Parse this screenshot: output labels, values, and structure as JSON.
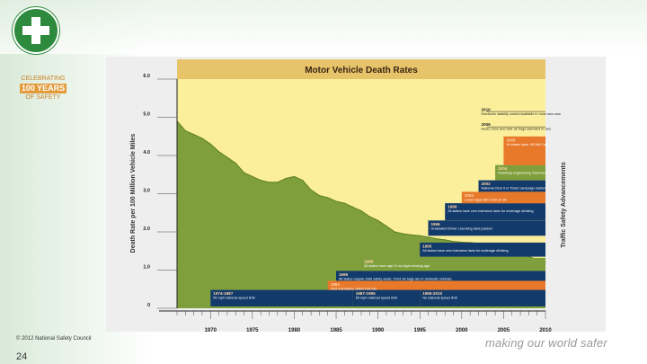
{
  "branding": {
    "badge_line1": "CELEBRATING",
    "badge_line2": "100 YEARS",
    "badge_line3": "OF SAFETY",
    "copyright": "© 2012 National Safety Council",
    "page_number": "24",
    "tagline": "making our world safer"
  },
  "colors": {
    "yellow": "#fbef9c",
    "green": "#7f9f3c",
    "navy": "#123a6b",
    "orange": "#e8782a",
    "header": "#5a3a1a",
    "title_bg": "#e7c46a"
  },
  "chart_data": {
    "type": "area",
    "title": "Motor Vehicle Death Rates",
    "xlabel": "",
    "ylabel": "Death Rate per 100 Million Vehicle Miles",
    "right_label": "Traffic Safety Advancements",
    "xlim": [
      1966,
      2010
    ],
    "ylim": [
      0,
      6
    ],
    "x_ticks": [
      "1970",
      "1975",
      "1980",
      "1985",
      "1990",
      "1995",
      "2000",
      "2005",
      "2010"
    ],
    "y_ticks": [
      "0",
      "1.0",
      "2.0",
      "3.0",
      "4.0",
      "5.0",
      "6.0"
    ],
    "series": [
      {
        "name": "Death rate",
        "x": [
          1966,
          1967,
          1968,
          1969,
          1970,
          1971,
          1972,
          1973,
          1974,
          1975,
          1976,
          1977,
          1978,
          1979,
          1980,
          1981,
          1982,
          1983,
          1984,
          1985,
          1986,
          1987,
          1988,
          1989,
          1990,
          1991,
          1992,
          1993,
          1994,
          1995,
          1996,
          1997,
          1998,
          1999,
          2000,
          2001,
          2002,
          2003,
          2004,
          2005,
          2006,
          2007,
          2008,
          2009,
          2010
        ],
        "values": [
          4.9,
          4.65,
          4.55,
          4.45,
          4.3,
          4.1,
          3.95,
          3.8,
          3.55,
          3.45,
          3.35,
          3.3,
          3.3,
          3.4,
          3.45,
          3.35,
          3.1,
          2.95,
          2.9,
          2.8,
          2.75,
          2.65,
          2.55,
          2.4,
          2.3,
          2.15,
          2.0,
          1.95,
          1.92,
          1.9,
          1.86,
          1.82,
          1.79,
          1.75,
          1.73,
          1.72,
          1.7,
          1.68,
          1.63,
          1.59,
          1.55,
          1.45,
          1.35,
          1.28,
          1.2
        ]
      }
    ],
    "milestones": [
      {
        "year_label": "1974-1987",
        "text": "55 mph national speed limit",
        "color": "navy"
      },
      {
        "year_label": "1984",
        "text": "First mandatory safety belt law",
        "color": "orange"
      },
      {
        "year_label": "1985",
        "text": "All states require child safety seats. Front air bags are in domestic vehicles",
        "color": "navy"
      },
      {
        "year_label": "1988",
        "text": "All states have age 21 as legal drinking age",
        "color": "green"
      },
      {
        "year_label": "1987-1995",
        "text": "65 mph national speed limit",
        "color": "navy"
      },
      {
        "year_label": "1995-2010",
        "text": "No national speed limit",
        "color": "navy"
      },
      {
        "year_label": "1995",
        "text": "All states have zero tolerance laws for underage drinking",
        "color": "navy"
      },
      {
        "year_label": "1996",
        "text": "Graduated Driver Licensing laws passed",
        "color": "navy"
      },
      {
        "year_label": "1998",
        "text": "All states have zero tolerance laws for underage drinking",
        "color": "navy"
      },
      {
        "year_label": "2000",
        "text": "Lower legal BAC limit of .08",
        "color": "orange"
      },
      {
        "year_label": "2002",
        "text": "National Click It or Ticket campaign started",
        "color": "navy"
      },
      {
        "year_label": "2004",
        "text": "Roadway engineering improvements",
        "color": "green"
      },
      {
        "year_label": "2005",
        "text": "All states have .08 BAC law",
        "color": "orange"
      },
      {
        "year_label": "2009",
        "text": "Head, torso and side air bags standard in cars",
        "color": "none"
      },
      {
        "year_label": "2010",
        "text": "Electronic stability control available in most new cars",
        "color": "none"
      }
    ]
  }
}
